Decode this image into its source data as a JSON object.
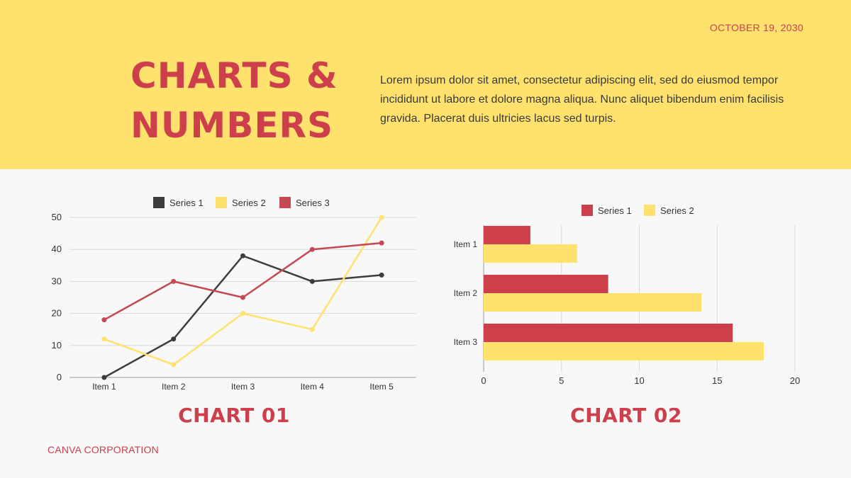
{
  "header": {
    "date": "OCTOBER 19, 2030",
    "title_line1": "CHARTS &",
    "title_line2": "NUMBERS",
    "intro": "Lorem ipsum dolor sit amet, consectetur adipiscing elit, sed do eiusmod tempor incididunt ut labore et dolore magna aliqua. Nunc aliquet bibendum enim facilisis gravida. Placerat duis ultricies lacus sed turpis."
  },
  "charts": {
    "chart1_title": "CHART 01",
    "chart2_title": "CHART 02"
  },
  "footer": {
    "company": "CANVA CORPORATION"
  },
  "chart_data": [
    {
      "type": "line",
      "categories": [
        "Item 1",
        "Item 2",
        "Item 3",
        "Item 4",
        "Item 5"
      ],
      "series": [
        {
          "name": "Series 1",
          "color": "#3d3d3d",
          "values": [
            0,
            12,
            38,
            30,
            32
          ]
        },
        {
          "name": "Series 2",
          "color": "#ffe16e",
          "values": [
            12,
            4,
            20,
            15,
            50
          ]
        },
        {
          "name": "Series 3",
          "color": "#c34a55",
          "values": [
            18,
            30,
            25,
            40,
            42
          ]
        }
      ],
      "ylim": [
        0,
        50
      ],
      "yticks": [
        0,
        10,
        20,
        30,
        40,
        50
      ],
      "grid": true,
      "legend": "top"
    },
    {
      "type": "bar",
      "orientation": "horizontal",
      "categories": [
        "Item 1",
        "Item 2",
        "Item 3"
      ],
      "series": [
        {
          "name": "Series 1",
          "color": "#cc3f4b",
          "values": [
            3,
            8,
            16
          ]
        },
        {
          "name": "Series 2",
          "color": "#ffe16e",
          "values": [
            6,
            14,
            18
          ]
        }
      ],
      "xlim": [
        0,
        20
      ],
      "xticks": [
        0,
        5,
        10,
        15,
        20
      ],
      "grid": true,
      "legend": "top"
    }
  ]
}
